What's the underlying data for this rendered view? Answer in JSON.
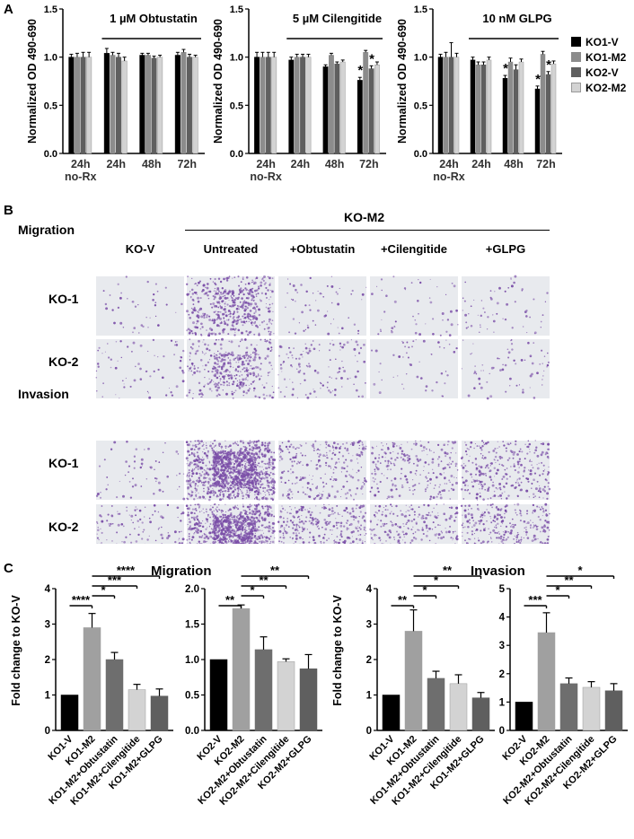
{
  "panel_labels": {
    "A": "A",
    "B": "B",
    "C": "C"
  },
  "legend": [
    {
      "label": "KO1-V",
      "color": "#000000"
    },
    {
      "label": "KO1-M2",
      "color": "#8c8c8c"
    },
    {
      "label": "KO2-V",
      "color": "#5f5f5f"
    },
    {
      "label": "KO2-M2",
      "color": "#d3d3d3"
    }
  ],
  "ylabel_A": "Normalized OD 490-690",
  "colors": {
    "KO1-V": "#000000",
    "KO1-M2": "#8c8c8c",
    "KO2-V": "#5f5f5f",
    "KO2-M2": "#d3d3d3",
    "stain": "#7b4fa8",
    "well": "#e8eaee"
  },
  "panelB": {
    "header_group": "KO-M2",
    "header_migration": "Migration",
    "header_invasion": "Invasion",
    "columns": [
      "KO-V",
      "Untreated",
      "+Obtustatin",
      "+Cilengitide",
      "+GLPG"
    ],
    "rows": [
      "KO-1",
      "KO-2",
      "KO-1",
      "KO-2"
    ]
  },
  "panelC": {
    "migration_title": "Migration",
    "invasion_title": "Invasion",
    "ylabel": "Fold change to KO-V"
  },
  "chart_data": [
    {
      "type": "bar",
      "title": "1 µM Obtustatin",
      "categories": [
        "24h\nno-Rx",
        "24h",
        "48h",
        "72h"
      ],
      "ylabel": "Normalized OD 490-690",
      "ylim": [
        0,
        1.5
      ],
      "yticks": [
        "0.0",
        "0.5",
        "1.0",
        "1.5"
      ],
      "series": [
        {
          "name": "KO1-V",
          "values": [
            1.0,
            1.04,
            1.02,
            1.02
          ]
        },
        {
          "name": "KO1-M2",
          "values": [
            1.0,
            1.02,
            1.02,
            1.05
          ]
        },
        {
          "name": "KO2-V",
          "values": [
            1.0,
            1.0,
            0.99,
            1.0
          ]
        },
        {
          "name": "KO2-M2",
          "values": [
            1.0,
            0.96,
            1.0,
            1.0
          ]
        }
      ],
      "errors": [
        [
          0.03,
          0.05,
          0.02,
          0.03
        ],
        [
          0.04,
          0.03,
          0.02,
          0.03
        ],
        [
          0.05,
          0.04,
          0.02,
          0.03
        ],
        [
          0.05,
          0.04,
          0.02,
          0.02
        ]
      ],
      "significance": []
    },
    {
      "type": "bar",
      "title": "5 µM Cilengitide",
      "categories": [
        "24h\nno-Rx",
        "24h",
        "48h",
        "72h"
      ],
      "ylabel": "Normalized OD 490-690",
      "ylim": [
        0,
        1.5
      ],
      "yticks": [
        "0.0",
        "0.5",
        "1.0",
        "1.5"
      ],
      "series": [
        {
          "name": "KO1-V",
          "values": [
            1.0,
            0.97,
            0.9,
            0.76
          ]
        },
        {
          "name": "KO1-M2",
          "values": [
            1.0,
            1.0,
            1.02,
            1.05
          ]
        },
        {
          "name": "KO2-V",
          "values": [
            1.0,
            1.0,
            0.93,
            0.88
          ]
        },
        {
          "name": "KO2-M2",
          "values": [
            1.0,
            1.0,
            0.95,
            0.92
          ]
        }
      ],
      "errors": [
        [
          0.05,
          0.03,
          0.02,
          0.03
        ],
        [
          0.05,
          0.03,
          0.02,
          0.02
        ],
        [
          0.05,
          0.03,
          0.02,
          0.03
        ],
        [
          0.05,
          0.03,
          0.02,
          0.03
        ]
      ],
      "significance": [
        "",
        "",
        "",
        "*|*"
      ]
    },
    {
      "type": "bar",
      "title": "10 nM GLPG",
      "categories": [
        "24h\nno-Rx",
        "24h",
        "48h",
        "72h"
      ],
      "ylabel": "Normalized OD 490-690",
      "ylim": [
        0,
        1.5
      ],
      "yticks": [
        "0.0",
        "0.5",
        "1.0",
        "1.5"
      ],
      "series": [
        {
          "name": "KO1-V",
          "values": [
            1.0,
            0.97,
            0.78,
            0.67
          ]
        },
        {
          "name": "KO1-M2",
          "values": [
            1.0,
            0.92,
            0.95,
            1.03
          ]
        },
        {
          "name": "KO2-V",
          "values": [
            1.0,
            0.92,
            0.87,
            0.82
          ]
        },
        {
          "name": "KO2-M2",
          "values": [
            1.0,
            0.97,
            0.95,
            0.93
          ]
        }
      ],
      "errors": [
        [
          0.03,
          0.03,
          0.03,
          0.03
        ],
        [
          0.05,
          0.03,
          0.04,
          0.03
        ],
        [
          0.15,
          0.03,
          0.05,
          0.03
        ],
        [
          0.04,
          0.03,
          0.03,
          0.03
        ]
      ],
      "significance": [
        "",
        "",
        "*",
        "*|*"
      ]
    },
    {
      "type": "bar",
      "title": "Migration",
      "categories": [
        "KO1-V",
        "KO1-M2",
        "KO1-M2+Obtustatin",
        "KO1-M2+Cilengitide",
        "KO1-M2+GLPG"
      ],
      "values": [
        1.0,
        2.9,
        2.0,
        1.15,
        0.97
      ],
      "errors": [
        0,
        0.4,
        0.2,
        0.15,
        0.2
      ],
      "colors": [
        "#000000",
        "#a0a0a0",
        "#6e6e6e",
        "#d3d3d3",
        "#5f5f5f"
      ],
      "ylabel": "Fold change to KO-V",
      "ylim": [
        0,
        4
      ],
      "yticks": [
        "0",
        "1",
        "2",
        "3",
        "4"
      ],
      "brackets": [
        {
          "to": 4,
          "label": "****"
        },
        {
          "to": 3,
          "label": "***"
        },
        {
          "to": 2,
          "label": "*"
        },
        {
          "to": 1,
          "label": "****"
        }
      ]
    },
    {
      "type": "bar",
      "title": "",
      "categories": [
        "KO2-V",
        "KO2-M2",
        "KO2-M2+Obtustatin",
        "KO2-M2+Cilengitide",
        "KO2-M2+GLPG"
      ],
      "values": [
        1.0,
        1.72,
        1.14,
        0.97,
        0.87
      ],
      "errors": [
        0,
        0.05,
        0.18,
        0.04,
        0.2
      ],
      "colors": [
        "#000000",
        "#a0a0a0",
        "#6e6e6e",
        "#d3d3d3",
        "#5f5f5f"
      ],
      "ylabel": "",
      "ylim": [
        0,
        2.0
      ],
      "yticks": [
        "0.0",
        "0.5",
        "1.0",
        "1.5",
        "2.0"
      ],
      "brackets": [
        {
          "to": 4,
          "label": "**"
        },
        {
          "to": 3,
          "label": "**"
        },
        {
          "to": 2,
          "label": "*"
        },
        {
          "to": 1,
          "label": "**"
        }
      ]
    },
    {
      "type": "bar",
      "title": "Invasion",
      "categories": [
        "KO1-V",
        "KO1-M2",
        "KO1-M2+Obtustatin",
        "KO1-M2+Cilengitide",
        "KO1-M2+GLPG"
      ],
      "values": [
        1.0,
        2.8,
        1.47,
        1.32,
        0.92
      ],
      "errors": [
        0,
        0.6,
        0.2,
        0.25,
        0.15
      ],
      "colors": [
        "#000000",
        "#a0a0a0",
        "#6e6e6e",
        "#d3d3d3",
        "#5f5f5f"
      ],
      "ylabel": "Fold change to KO-V",
      "ylim": [
        0,
        4
      ],
      "yticks": [
        "0",
        "1",
        "2",
        "3",
        "4"
      ],
      "brackets": [
        {
          "to": 4,
          "label": "**"
        },
        {
          "to": 3,
          "label": "*"
        },
        {
          "to": 2,
          "label": "*"
        },
        {
          "to": 1,
          "label": "**"
        }
      ]
    },
    {
      "type": "bar",
      "title": "",
      "categories": [
        "KO2-V",
        "KO2-M2",
        "KO2-M2+Obtustatin",
        "KO2-M2+Cilengitide",
        "KO2-M2+GLPG"
      ],
      "values": [
        1.0,
        3.45,
        1.65,
        1.52,
        1.4
      ],
      "errors": [
        0,
        0.7,
        0.2,
        0.2,
        0.25
      ],
      "colors": [
        "#000000",
        "#a0a0a0",
        "#6e6e6e",
        "#d3d3d3",
        "#5f5f5f"
      ],
      "ylabel": "",
      "ylim": [
        0,
        5
      ],
      "yticks": [
        "0",
        "1",
        "2",
        "3",
        "4",
        "5"
      ],
      "brackets": [
        {
          "to": 4,
          "label": "*"
        },
        {
          "to": 3,
          "label": "**"
        },
        {
          "to": 2,
          "label": "*"
        },
        {
          "to": 1,
          "label": "***"
        }
      ]
    }
  ]
}
